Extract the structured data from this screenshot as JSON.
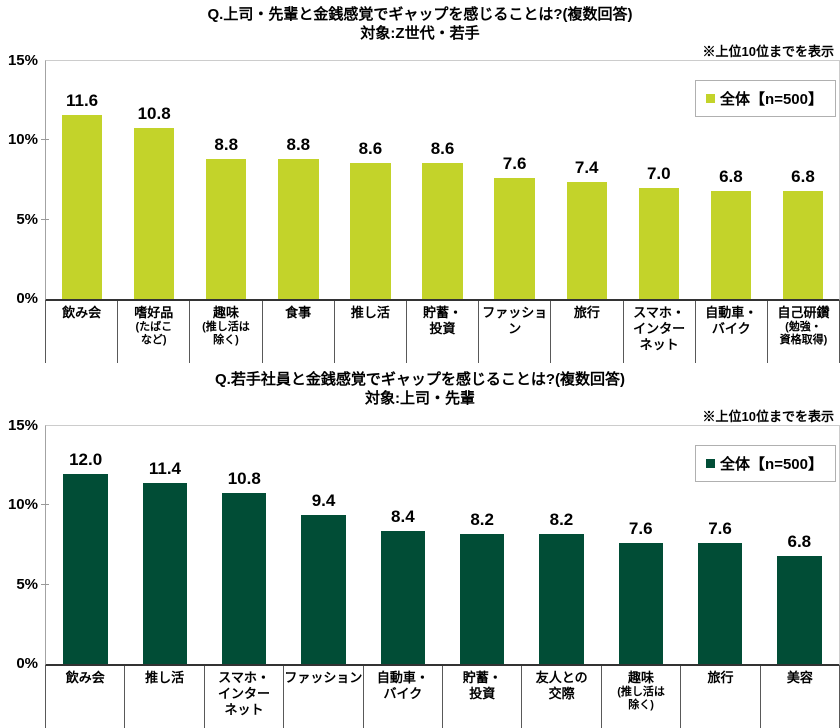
{
  "page": {
    "background": "#ffffff"
  },
  "chart_data": [
    {
      "type": "bar",
      "title": "Q.上司・先輩と金銭感覚でギャップを感じることは?(複数回答)",
      "subtitle": "対象:Z世代・若手",
      "note": "※上位10位までを表示",
      "legend_label": "全体【n=500】",
      "legend_position": "top-right-inside",
      "bar_color": "#c3d32a",
      "grid": false,
      "ylim": [
        0,
        15
      ],
      "yticks": [
        {
          "label": "15%",
          "value": 15
        },
        {
          "label": "10%",
          "value": 10
        },
        {
          "label": "5%",
          "value": 5
        },
        {
          "label": "0%",
          "value": 0
        }
      ],
      "categories": [
        {
          "main": "飲み会",
          "sub": ""
        },
        {
          "main": "嗜好品",
          "sub": "(たばこ\nなど)"
        },
        {
          "main": "趣味",
          "sub": "(推し活は\n除く)"
        },
        {
          "main": "食事",
          "sub": ""
        },
        {
          "main": "推し活",
          "sub": ""
        },
        {
          "main": "貯蓄・\n投資",
          "sub": ""
        },
        {
          "main": "ファッション",
          "sub": ""
        },
        {
          "main": "旅行",
          "sub": ""
        },
        {
          "main": "スマホ・\nインター\nネット",
          "sub": ""
        },
        {
          "main": "自動車・\nバイク",
          "sub": ""
        },
        {
          "main": "自己研鑽",
          "sub": "(勉強・\n資格取得)"
        }
      ],
      "values": [
        11.6,
        10.8,
        8.8,
        8.8,
        8.6,
        8.6,
        7.6,
        7.4,
        7.0,
        6.8,
        6.8
      ]
    },
    {
      "type": "bar",
      "title": "Q.若手社員と金銭感覚でギャップを感じることは?(複数回答)",
      "subtitle": "対象:上司・先輩",
      "note": "※上位10位までを表示",
      "legend_label": "全体【n=500】",
      "legend_position": "top-right-inside",
      "bar_color": "#014d36",
      "grid": false,
      "ylim": [
        0,
        15
      ],
      "yticks": [
        {
          "label": "15%",
          "value": 15
        },
        {
          "label": "10%",
          "value": 10
        },
        {
          "label": "5%",
          "value": 5
        },
        {
          "label": "0%",
          "value": 0
        }
      ],
      "categories": [
        {
          "main": "飲み会",
          "sub": ""
        },
        {
          "main": "推し活",
          "sub": ""
        },
        {
          "main": "スマホ・\nインター\nネット",
          "sub": ""
        },
        {
          "main": "ファッション",
          "sub": ""
        },
        {
          "main": "自動車・\nバイク",
          "sub": ""
        },
        {
          "main": "貯蓄・\n投資",
          "sub": ""
        },
        {
          "main": "友人との\n交際",
          "sub": ""
        },
        {
          "main": "趣味",
          "sub": "(推し活は\n除く)"
        },
        {
          "main": "旅行",
          "sub": ""
        },
        {
          "main": "美容",
          "sub": ""
        }
      ],
      "values": [
        12.0,
        11.4,
        10.8,
        9.4,
        8.4,
        8.2,
        8.2,
        7.6,
        7.6,
        6.8
      ]
    }
  ]
}
